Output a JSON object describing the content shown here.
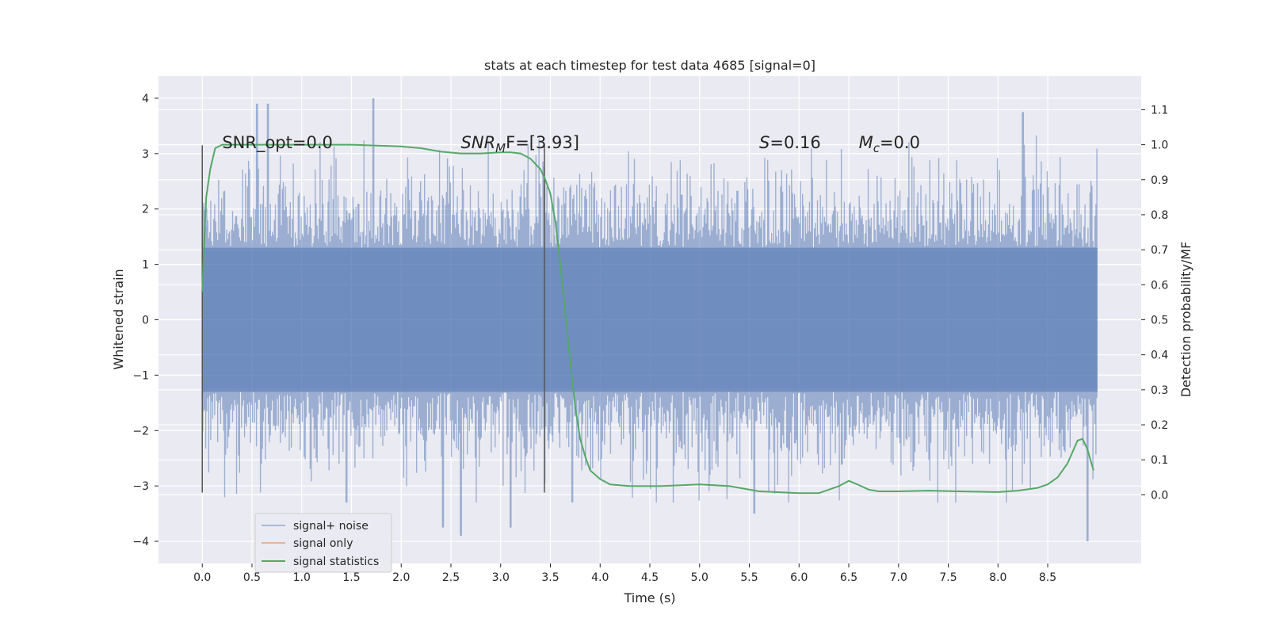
{
  "chart_data": {
    "type": "line",
    "title": "stats at each timestep for test data 4685 [signal=0]",
    "xlabel": "Time (s)",
    "ylabel": "Whitened strain",
    "y2label": "Detection probability/MF",
    "xlim": [
      -0.44,
      9.44
    ],
    "ylim": [
      -4.4,
      4.4
    ],
    "y2lim": [
      -0.196,
      1.196
    ],
    "xticks": [
      "0.0",
      "0.5",
      "1.0",
      "1.5",
      "2.0",
      "2.5",
      "3.0",
      "3.5",
      "4.0",
      "4.5",
      "5.0",
      "5.5",
      "6.0",
      "6.5",
      "7.0",
      "7.5",
      "8.0",
      "8.5"
    ],
    "yticks": [
      "4",
      "3",
      "2",
      "1",
      "0",
      "−1",
      "−2",
      "−3",
      "−4"
    ],
    "y2ticks": [
      "1.1",
      "1.0",
      "0.9",
      "0.8",
      "0.7",
      "0.6",
      "0.5",
      "0.4",
      "0.3",
      "0.2",
      "0.1",
      "0.0"
    ],
    "grid": true,
    "legend_position": "lower-left",
    "colors": {
      "noise": "#4c72b0",
      "signal": "#dd8452",
      "stats": "#55a868",
      "background": "#eaeaf2",
      "marker": "#555555"
    },
    "annotations": [
      {
        "label": "SNR_opt=0.0",
        "x": 0.2,
        "y2": 0.99
      },
      {
        "label_math": "SNR",
        "label_sub": "M",
        "label_rest": "F=[3.93]",
        "x": 2.6,
        "y2": 0.99
      },
      {
        "label_math": "S",
        "label_rest": "=0.16",
        "x": 5.6,
        "y2": 0.99
      },
      {
        "label_math": "M",
        "label_sub": "c",
        "label_rest": "=0.0",
        "x": 6.6,
        "y2": 0.99
      }
    ],
    "markers": [
      {
        "x": 0.0,
        "y": [
          -3.12,
          3.15
        ]
      },
      {
        "x": 3.44,
        "y": [
          -3.12,
          3.15
        ]
      }
    ],
    "series": [
      {
        "name": "signal+ noise",
        "role": "noise",
        "x_range": [
          0.0,
          9.0
        ],
        "sample_count": 900,
        "envelope_abs": 1.3,
        "extreme_peaks": [
          [
            0.55,
            3.9
          ],
          [
            0.66,
            3.9
          ],
          [
            1.72,
            4.0
          ],
          [
            8.25,
            3.75
          ],
          [
            1.45,
            -3.3
          ],
          [
            2.42,
            -3.75
          ],
          [
            2.6,
            -3.9
          ],
          [
            3.1,
            -3.75
          ],
          [
            5.55,
            -3.5
          ],
          [
            8.9,
            -4.0
          ]
        ]
      },
      {
        "name": "signal only",
        "role": "signal",
        "x": [
          0.0,
          9.0
        ],
        "y": [
          0.0,
          0.0
        ]
      },
      {
        "name": "signal statistics",
        "role": "stats",
        "axis": "right",
        "x": [
          0.0,
          0.04,
          0.08,
          0.13,
          0.2,
          0.3,
          0.5,
          1.0,
          1.5,
          2.0,
          2.2,
          2.4,
          2.6,
          2.8,
          3.0,
          3.1,
          3.2,
          3.3,
          3.4,
          3.45,
          3.5,
          3.55,
          3.6,
          3.65,
          3.7,
          3.75,
          3.8,
          3.85,
          3.9,
          4.0,
          4.1,
          4.3,
          4.6,
          5.0,
          5.3,
          5.6,
          6.0,
          6.2,
          6.3,
          6.4,
          6.5,
          6.6,
          6.7,
          6.8,
          7.0,
          7.3,
          7.6,
          8.0,
          8.2,
          8.4,
          8.5,
          8.6,
          8.7,
          8.8,
          8.85,
          8.9,
          8.96
        ],
        "y": [
          0.58,
          0.85,
          0.93,
          0.99,
          1.0,
          1.0,
          1.0,
          1.0,
          1.0,
          0.995,
          0.99,
          0.98,
          0.975,
          0.975,
          0.978,
          0.978,
          0.975,
          0.96,
          0.93,
          0.9,
          0.86,
          0.78,
          0.66,
          0.52,
          0.38,
          0.25,
          0.16,
          0.11,
          0.07,
          0.045,
          0.03,
          0.025,
          0.025,
          0.03,
          0.025,
          0.01,
          0.005,
          0.005,
          0.015,
          0.025,
          0.04,
          0.028,
          0.015,
          0.01,
          0.01,
          0.012,
          0.01,
          0.008,
          0.012,
          0.02,
          0.03,
          0.05,
          0.09,
          0.155,
          0.16,
          0.13,
          0.07
        ]
      }
    ]
  }
}
